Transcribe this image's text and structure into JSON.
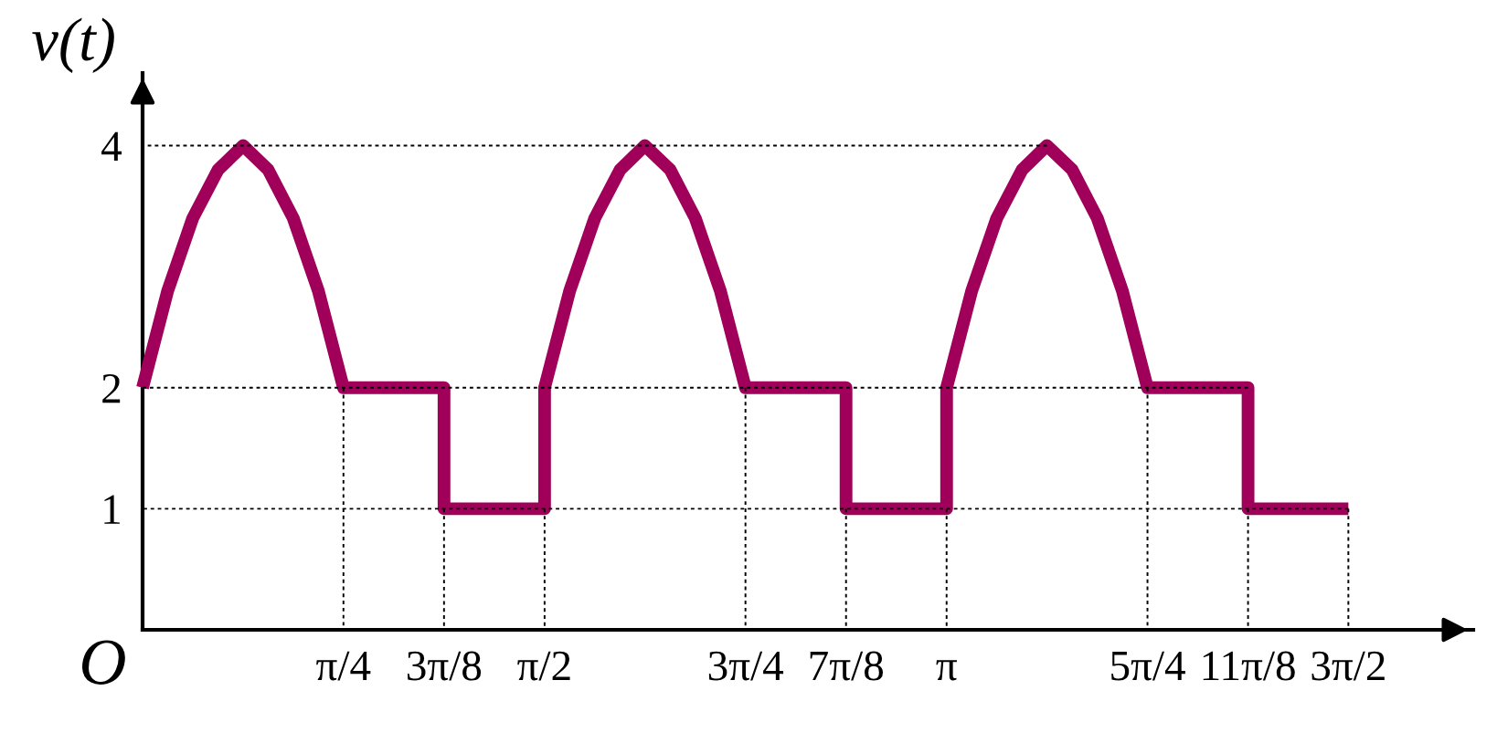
{
  "chart_data": {
    "type": "line",
    "ylabel": "v(t)",
    "annotations": [
      "O"
    ],
    "series": [
      {
        "color": "#a0005a",
        "x": [
          0,
          0.098,
          0.196,
          0.295,
          0.393,
          0.491,
          0.589,
          0.687,
          0.785,
          1.178,
          1.178,
          1.571,
          1.571,
          1.669,
          1.767,
          1.866,
          1.963,
          2.062,
          2.16,
          2.258,
          2.356,
          2.749,
          2.749,
          3.142,
          3.142,
          3.24,
          3.338,
          3.437,
          3.534,
          3.633,
          3.731,
          3.829,
          3.927,
          4.32,
          4.32,
          4.712
        ],
        "values": [
          2,
          2.8,
          3.4,
          3.8,
          4,
          3.8,
          3.4,
          2.8,
          2,
          2,
          1,
          1,
          2,
          2.8,
          3.4,
          3.8,
          4,
          3.8,
          3.4,
          2.8,
          2,
          2,
          1,
          1,
          2,
          2.8,
          3.4,
          3.8,
          4,
          3.8,
          3.4,
          2.8,
          2,
          2,
          1,
          1
        ]
      },
      {
        "color": "#000000",
        "line_style": "dotted",
        "x": [
          0.785,
          0.785
        ],
        "values": [
          2,
          0
        ]
      },
      {
        "color": "#000000",
        "line_style": "dotted",
        "x": [
          1.178,
          1.178
        ],
        "values": [
          1,
          0
        ]
      },
      {
        "color": "#000000",
        "line_style": "dotted",
        "x": [
          1.571,
          1.571
        ],
        "values": [
          1,
          0
        ]
      },
      {
        "color": "#000000",
        "line_style": "dotted",
        "x": [
          2.356,
          2.356
        ],
        "values": [
          2,
          0
        ]
      },
      {
        "color": "#000000",
        "line_style": "dotted",
        "x": [
          2.749,
          2.749
        ],
        "values": [
          1,
          0
        ]
      },
      {
        "color": "#000000",
        "line_style": "dotted",
        "x": [
          3.142,
          3.142
        ],
        "values": [
          1,
          0
        ]
      },
      {
        "color": "#000000",
        "line_style": "dotted",
        "x": [
          3.927,
          3.927
        ],
        "values": [
          2,
          0
        ]
      },
      {
        "color": "#000000",
        "line_style": "dotted",
        "x": [
          4.32,
          4.32
        ],
        "values": [
          1,
          0
        ]
      },
      {
        "color": "#000000",
        "line_style": "dotted",
        "x": [
          4.712,
          4.712
        ],
        "values": [
          1,
          0
        ]
      },
      {
        "color": "#000000",
        "line_style": "dotted",
        "x": [
          3.534,
          0
        ],
        "values": [
          4,
          4
        ]
      },
      {
        "color": "#000000",
        "line_style": "dotted",
        "x": [
          4.32,
          0
        ],
        "values": [
          2,
          2
        ]
      },
      {
        "color": "#000000",
        "line_style": "dotted",
        "x": [
          4.712,
          0
        ],
        "values": [
          1,
          1
        ]
      }
    ],
    "xlim": [
      0,
      5.2
    ],
    "ylim": [
      0,
      4.6
    ],
    "xticks": [
      {
        "value": 0.785,
        "label": "π/4"
      },
      {
        "value": 1.178,
        "label": "3π/8"
      },
      {
        "value": 1.571,
        "label": "π/2"
      },
      {
        "value": 2.356,
        "label": "3π/4"
      },
      {
        "value": 2.749,
        "label": "7π/8"
      },
      {
        "value": 3.142,
        "label": "π"
      },
      {
        "value": 3.927,
        "label": "5π/4"
      },
      {
        "value": 4.32,
        "label": "11π/8"
      },
      {
        "value": 4.712,
        "label": "3π/2"
      }
    ],
    "yticks": [
      1,
      2,
      4
    ],
    "marker": "none",
    "line_style": "solid"
  }
}
